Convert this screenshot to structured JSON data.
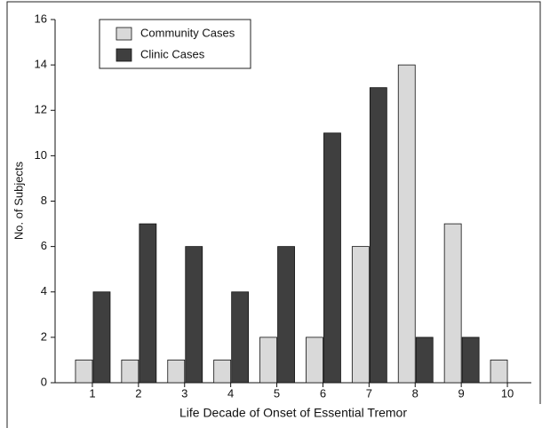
{
  "chart_data": {
    "type": "bar",
    "x_label": "Life Decade of Onset of Essential Tremor",
    "y_label": "No. of Subjects",
    "categories": [
      "1",
      "2",
      "3",
      "4",
      "5",
      "6",
      "7",
      "8",
      "9",
      "10"
    ],
    "series": [
      {
        "name": "Community Cases",
        "color": "#d9d9d9",
        "values": [
          1,
          1,
          1,
          1,
          2,
          2,
          6,
          14,
          7,
          1
        ]
      },
      {
        "name": "Clinic Cases",
        "color": "#3f3f3f",
        "values": [
          4,
          7,
          6,
          4,
          6,
          11,
          13,
          2,
          2,
          0
        ]
      }
    ],
    "ylim": [
      0,
      16
    ],
    "yticks": [
      0,
      2,
      4,
      6,
      8,
      10,
      12,
      14,
      16
    ],
    "legend": "upper-left"
  }
}
